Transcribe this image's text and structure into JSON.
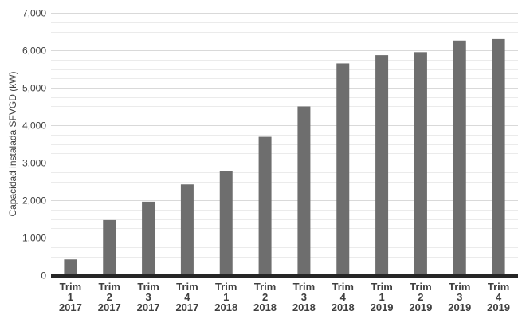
{
  "chart_data": {
    "type": "bar",
    "title": "",
    "xlabel": "",
    "ylabel": "Capacidad instalada SFVGD (kW)",
    "ylim": [
      0,
      7000
    ],
    "yticks": [
      0,
      1000,
      2000,
      3000,
      4000,
      5000,
      6000,
      7000
    ],
    "ytick_labels": [
      "0",
      "1,000",
      "2,000",
      "3,000",
      "4,000",
      "5,000",
      "6,000",
      "7,000"
    ],
    "grid": true,
    "legend": "none",
    "bar_color": "#6e6e6e",
    "categories": [
      [
        "Trim",
        "1",
        "2017"
      ],
      [
        "Trim",
        "2",
        "2017"
      ],
      [
        "Trim",
        "3",
        "2017"
      ],
      [
        "Trim",
        "4",
        "2017"
      ],
      [
        "Trim",
        "1",
        "2018"
      ],
      [
        "Trim",
        "2",
        "2018"
      ],
      [
        "Trim",
        "3",
        "2018"
      ],
      [
        "Trim",
        "4",
        "2018"
      ],
      [
        "Trim",
        "1",
        "2019"
      ],
      [
        "Trim",
        "2",
        "2019"
      ],
      [
        "Trim",
        "3",
        "2019"
      ],
      [
        "Trim",
        "4",
        "2019"
      ]
    ],
    "values": [
      420,
      1470,
      1960,
      2420,
      2770,
      3690,
      4500,
      5650,
      5870,
      5950,
      6260,
      6300
    ]
  }
}
